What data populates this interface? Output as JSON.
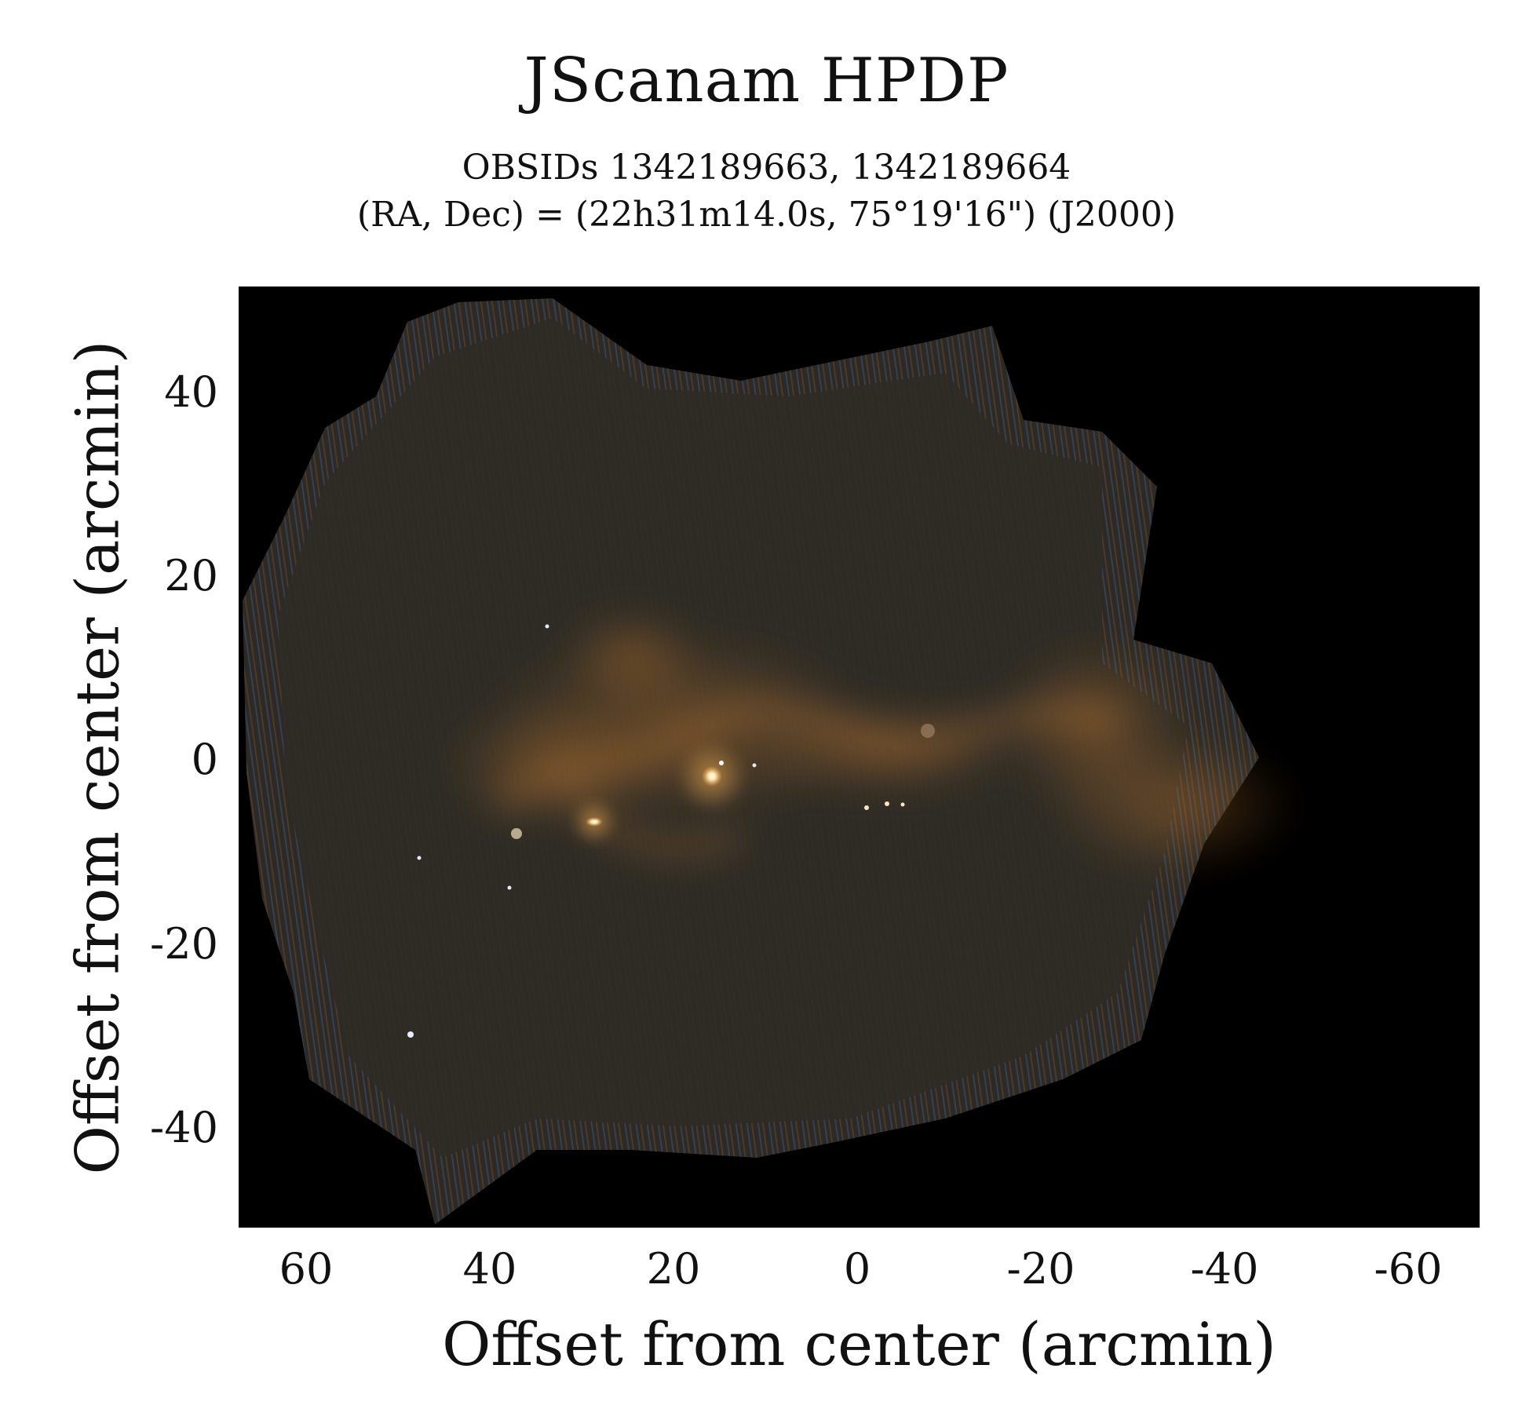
{
  "title": "JScanam HPDP",
  "subtitle_line1": "OBSIDs 1342189663, 1342189664",
  "subtitle_line2": "(RA, Dec) = (22h31m14.0s, 75°19'16\") (J2000)",
  "x_axis": {
    "label": "Offset from center (arcmin)",
    "ticks": [
      "60",
      "40",
      "20",
      "0",
      "-20",
      "-40",
      "-60"
    ]
  },
  "y_axis": {
    "label": "Offset from center (arcmin)",
    "ticks": [
      "40",
      "20",
      "0",
      "-20",
      "-40"
    ]
  },
  "colors": {
    "background": "#000000",
    "emission": "#c07a2c",
    "noise_blue": "#3f5f8f",
    "map_base": "#2f2a22"
  }
}
